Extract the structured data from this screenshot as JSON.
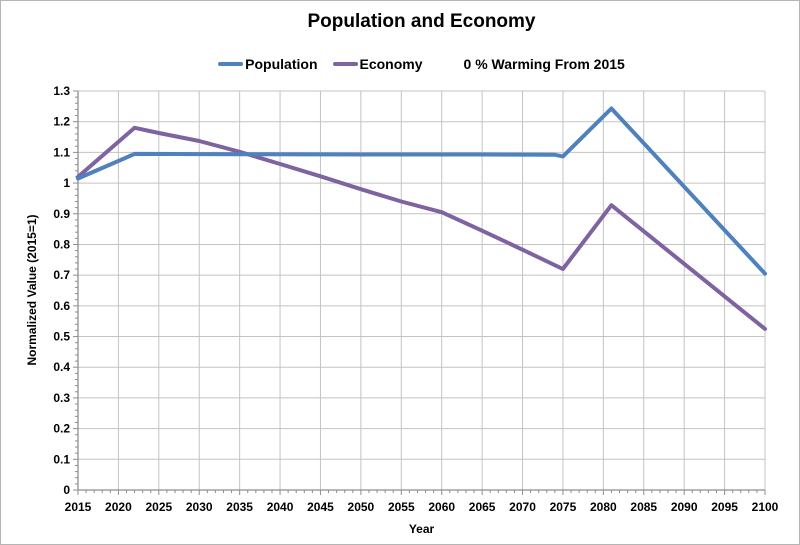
{
  "chart_data": {
    "type": "line",
    "title": "Population and Economy",
    "annotation": "0 % Warming From 2015",
    "xlabel": "Year",
    "ylabel": "Normalized Value (2015=1)",
    "xlim": [
      2015,
      2100
    ],
    "ylim": [
      0,
      1.3
    ],
    "x_tick_step": 5,
    "y_tick_step": 0.1,
    "x_minor_tick_step": 1,
    "y_minor_tick_step": 0.02,
    "grid": true,
    "legend_position": "top-center",
    "x_tick_labels": [
      "2015",
      "2020",
      "2025",
      "2030",
      "2035",
      "2040",
      "2045",
      "2050",
      "2055",
      "2060",
      "2065",
      "2070",
      "2075",
      "2080",
      "2085",
      "2090",
      "2095",
      "2100"
    ],
    "y_tick_labels": [
      "0",
      "0.1",
      "0.2",
      "0.3",
      "0.4",
      "0.5",
      "0.6",
      "0.7",
      "0.8",
      "0.9",
      "1",
      "1.1",
      "1.2",
      "1.3"
    ],
    "colors": {
      "gridline": "#c3c3c3",
      "axis": "#8e8e8e",
      "text": "#000000"
    },
    "series": [
      {
        "name": "Economy",
        "color": "#7F63A1",
        "points": [
          [
            2015,
            1.02
          ],
          [
            2022,
            1.18
          ],
          [
            2025,
            1.163
          ],
          [
            2030,
            1.137
          ],
          [
            2035,
            1.102
          ],
          [
            2040,
            1.062
          ],
          [
            2045,
            1.022
          ],
          [
            2050,
            0.98
          ],
          [
            2055,
            0.94
          ],
          [
            2060,
            0.905
          ],
          [
            2065,
            0.845
          ],
          [
            2070,
            0.783
          ],
          [
            2075,
            0.72
          ],
          [
            2081,
            0.928
          ],
          [
            2100,
            0.525
          ]
        ]
      },
      {
        "name": "Population",
        "color": "#4F81BD",
        "points": [
          [
            2015,
            1.015
          ],
          [
            2022,
            1.095
          ],
          [
            2035,
            1.094
          ],
          [
            2050,
            1.093
          ],
          [
            2065,
            1.093
          ],
          [
            2074,
            1.092
          ],
          [
            2075,
            1.087
          ],
          [
            2081,
            1.243
          ],
          [
            2100,
            0.705
          ]
        ]
      }
    ],
    "legend_order": [
      "Population",
      "Economy"
    ]
  }
}
